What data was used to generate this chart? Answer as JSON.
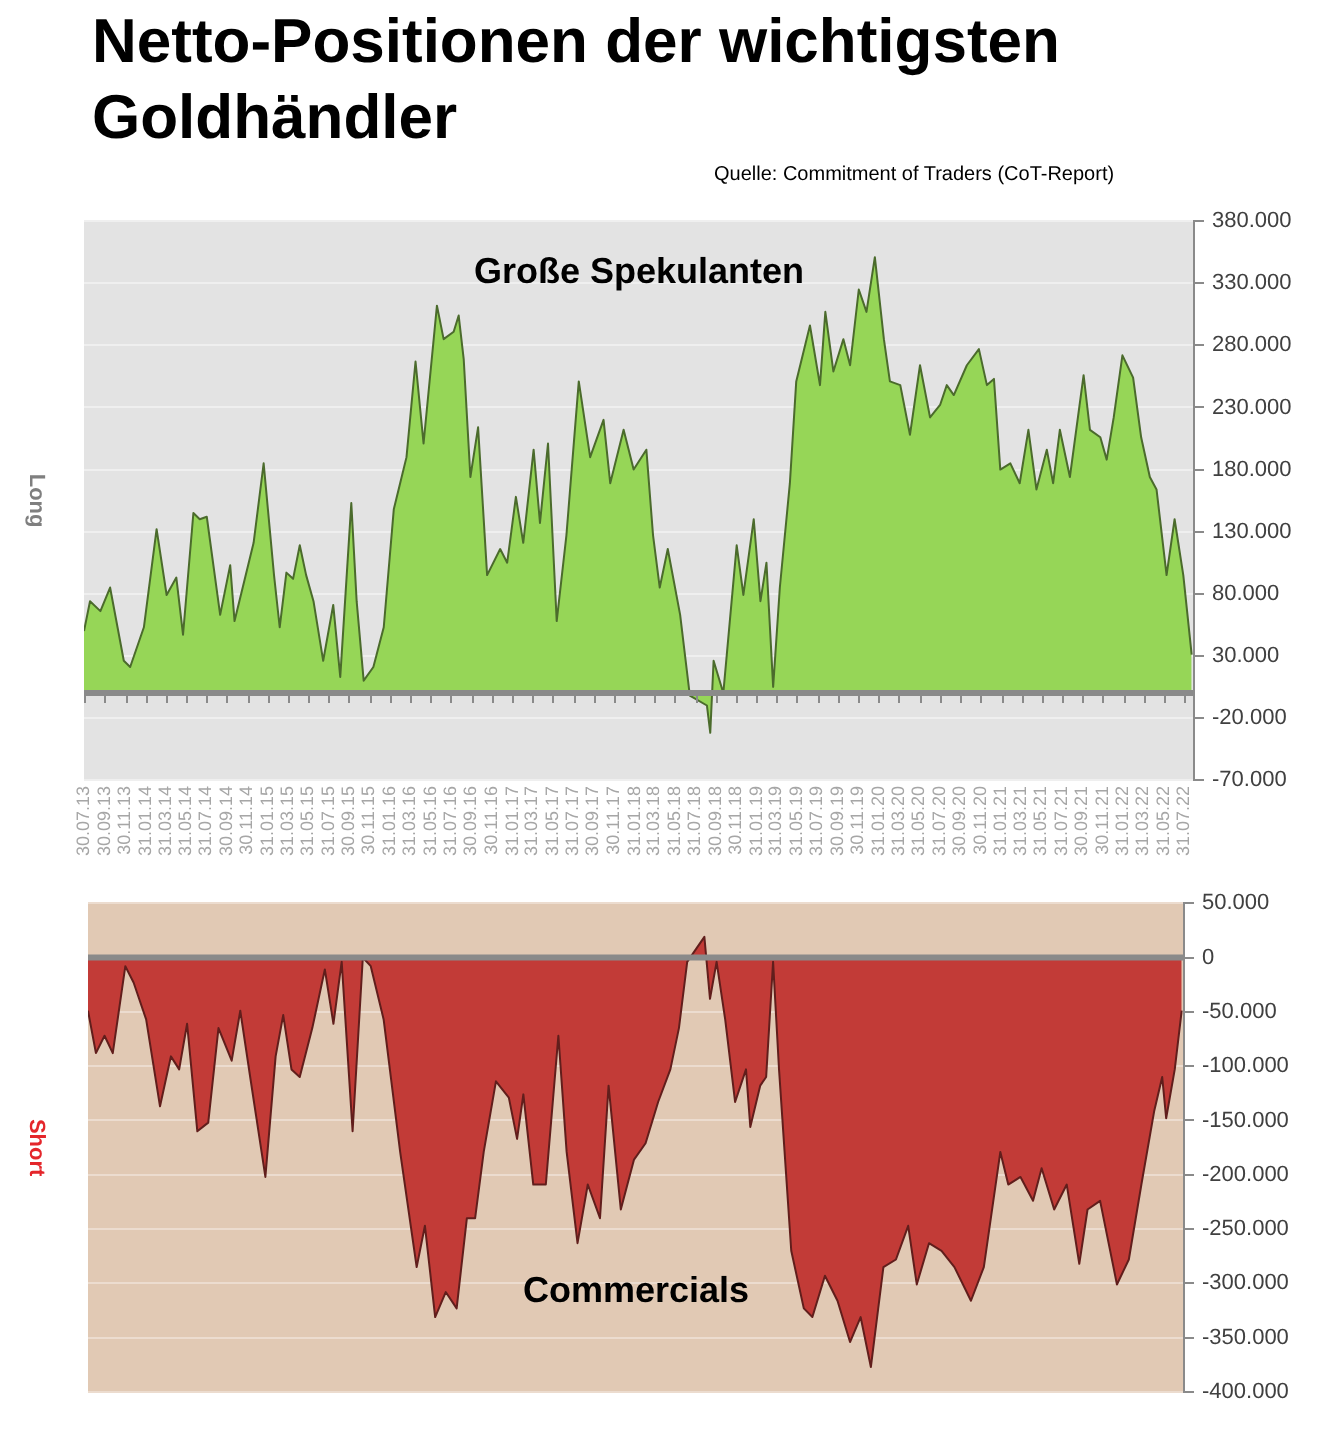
{
  "chart_data": [
    {
      "type": "area",
      "title": "Netto-Positionen der wichtigsten Goldhändler",
      "annotations": [
        "Quelle: Commitment of Traders (CoT-Report)"
      ],
      "ylabel": "Long",
      "grid": "y",
      "xlim": [
        "2013-07-30",
        "2022-08-30"
      ],
      "xticks": [
        {
          "value": "2013-07-30",
          "label": "30.07.13"
        },
        {
          "value": "2013-09-30",
          "label": "30.09.13"
        },
        {
          "value": "2013-11-30",
          "label": "30.11.13"
        },
        {
          "value": "2014-01-31",
          "label": "31.01.14"
        },
        {
          "value": "2014-03-31",
          "label": "31.03.14"
        },
        {
          "value": "2014-05-31",
          "label": "31.05.14"
        },
        {
          "value": "2014-07-31",
          "label": "31.07.14"
        },
        {
          "value": "2014-09-30",
          "label": "30.09.14"
        },
        {
          "value": "2014-11-30",
          "label": "30.11.14"
        },
        {
          "value": "2015-01-31",
          "label": "31.01.15"
        },
        {
          "value": "2015-03-31",
          "label": "31.03.15"
        },
        {
          "value": "2015-05-31",
          "label": "31.05.15"
        },
        {
          "value": "2015-07-31",
          "label": "31.07.15"
        },
        {
          "value": "2015-09-30",
          "label": "30.09.15"
        },
        {
          "value": "2015-11-30",
          "label": "30.11.15"
        },
        {
          "value": "2016-01-31",
          "label": "31.01.16"
        },
        {
          "value": "2016-03-31",
          "label": "31.03.16"
        },
        {
          "value": "2016-05-31",
          "label": "31.05.16"
        },
        {
          "value": "2016-07-31",
          "label": "31.07.16"
        },
        {
          "value": "2016-09-30",
          "label": "30.09.16"
        },
        {
          "value": "2016-11-30",
          "label": "30.11.16"
        },
        {
          "value": "2017-01-31",
          "label": "31.01.17"
        },
        {
          "value": "2017-03-31",
          "label": "31.03.17"
        },
        {
          "value": "2017-05-31",
          "label": "31.05.17"
        },
        {
          "value": "2017-07-31",
          "label": "31.07.17"
        },
        {
          "value": "2017-09-30",
          "label": "30.09.17"
        },
        {
          "value": "2017-11-30",
          "label": "30.11.17"
        },
        {
          "value": "2018-01-31",
          "label": "31.01.18"
        },
        {
          "value": "2018-03-31",
          "label": "31.03.18"
        },
        {
          "value": "2018-05-31",
          "label": "31.05.18"
        },
        {
          "value": "2018-07-31",
          "label": "31.07.18"
        },
        {
          "value": "2018-09-30",
          "label": "30.09.18"
        },
        {
          "value": "2018-11-30",
          "label": "30.11.18"
        },
        {
          "value": "2019-01-31",
          "label": "31.01.19"
        },
        {
          "value": "2019-03-31",
          "label": "31.03.19"
        },
        {
          "value": "2019-05-31",
          "label": "31.05.19"
        },
        {
          "value": "2019-07-31",
          "label": "31.07.19"
        },
        {
          "value": "2019-09-30",
          "label": "30.09.19"
        },
        {
          "value": "2019-11-30",
          "label": "30.11.19"
        },
        {
          "value": "2020-01-31",
          "label": "31.01.20"
        },
        {
          "value": "2020-03-31",
          "label": "31.03.20"
        },
        {
          "value": "2020-05-31",
          "label": "31.05.20"
        },
        {
          "value": "2020-07-31",
          "label": "31.07.20"
        },
        {
          "value": "2020-09-30",
          "label": "30.09.20"
        },
        {
          "value": "2020-11-30",
          "label": "30.11.20"
        },
        {
          "value": "2021-01-31",
          "label": "31.01.21"
        },
        {
          "value": "2021-03-31",
          "label": "31.03.21"
        },
        {
          "value": "2021-05-31",
          "label": "31.05.21"
        },
        {
          "value": "2021-07-31",
          "label": "31.07.21"
        },
        {
          "value": "2021-09-30",
          "label": "30.09.21"
        },
        {
          "value": "2021-11-30",
          "label": "30.11.21"
        },
        {
          "value": "2022-01-31",
          "label": "31.01.22"
        },
        {
          "value": "2022-03-31",
          "label": "31.03.22"
        },
        {
          "value": "2022-05-31",
          "label": "31.05.22"
        },
        {
          "value": "2022-07-31",
          "label": "31.07.22"
        }
      ],
      "ylim": [
        -70000,
        380000
      ],
      "yticks": [
        {
          "value": -70000,
          "label": "-70.000"
        },
        {
          "value": -20000,
          "label": "-20.000"
        },
        {
          "value": 30000,
          "label": "30.000"
        },
        {
          "value": 80000,
          "label": "80.000"
        },
        {
          "value": 130000,
          "label": "130.000"
        },
        {
          "value": 180000,
          "label": "180.000"
        },
        {
          "value": 230000,
          "label": "230.000"
        },
        {
          "value": 280000,
          "label": "280.000"
        },
        {
          "value": 330000,
          "label": "330.000"
        },
        {
          "value": 380000,
          "label": "380.000"
        }
      ],
      "x": [
        "2013-07-30",
        "2013-08-17",
        "2013-09-17",
        "2013-10-16",
        "2013-11-26",
        "2013-12-15",
        "2014-01-25",
        "2014-03-04",
        "2014-04-03",
        "2014-05-02",
        "2014-05-22",
        "2014-06-22",
        "2014-07-11",
        "2014-08-01",
        "2014-09-10",
        "2014-10-10",
        "2014-10-23",
        "2014-12-19",
        "2015-01-18",
        "2015-02-18",
        "2015-03-07",
        "2015-03-27",
        "2015-04-16",
        "2015-05-06",
        "2015-05-25",
        "2015-06-16",
        "2015-07-15",
        "2015-08-14",
        "2015-09-04",
        "2015-10-07",
        "2015-10-23",
        "2015-11-13",
        "2015-12-12",
        "2016-01-12",
        "2016-02-11",
        "2016-03-01",
        "2016-03-20",
        "2016-04-16",
        "2016-05-10",
        "2016-06-19",
        "2016-07-09",
        "2016-08-08",
        "2016-08-23",
        "2016-09-07",
        "2016-09-27",
        "2016-10-20",
        "2016-11-16",
        "2016-12-25",
        "2017-01-15",
        "2017-02-10",
        "2017-03-04",
        "2017-04-04",
        "2017-04-23",
        "2017-05-17",
        "2017-06-12",
        "2017-07-11",
        "2017-08-17",
        "2017-09-20",
        "2017-10-30",
        "2017-11-19",
        "2017-12-29",
        "2018-01-28",
        "2018-03-07",
        "2018-03-27",
        "2018-04-16",
        "2018-05-10",
        "2018-06-16",
        "2018-07-15",
        "2018-09-04",
        "2018-09-14",
        "2018-09-24",
        "2018-10-23",
        "2018-12-02",
        "2018-12-22",
        "2019-01-22",
        "2019-02-11",
        "2019-03-01",
        "2019-03-21",
        "2019-04-10",
        "2019-05-10",
        "2019-05-29",
        "2019-07-09",
        "2019-08-08",
        "2019-08-24",
        "2019-09-17",
        "2019-10-17",
        "2019-11-06",
        "2019-12-02",
        "2019-12-25",
        "2020-01-19",
        "2020-02-15",
        "2020-03-04",
        "2020-04-04",
        "2020-05-03",
        "2020-06-02",
        "2020-07-02",
        "2020-08-01",
        "2020-08-21",
        "2020-09-11",
        "2020-10-20",
        "2020-11-25",
        "2020-12-19",
        "2021-01-09",
        "2021-01-28",
        "2021-02-27",
        "2021-03-27",
        "2021-04-22",
        "2021-05-16",
        "2021-06-16",
        "2021-07-05",
        "2021-07-25",
        "2021-08-24",
        "2021-10-04",
        "2021-10-23",
        "2021-11-23",
        "2021-12-12",
        "2022-01-02",
        "2022-01-28",
        "2022-03-01",
        "2022-03-25",
        "2022-04-20",
        "2022-05-10",
        "2022-06-09",
        "2022-07-03",
        "2022-07-29",
        "2022-08-23"
      ],
      "series": [
        {
          "name": "Große Spekulanten",
          "color": "#96d657",
          "values": [
            50000,
            74000,
            66000,
            85000,
            26000,
            21000,
            53000,
            132000,
            79000,
            93000,
            47000,
            145000,
            140000,
            142000,
            63000,
            103000,
            58000,
            121000,
            185000,
            95000,
            53000,
            97000,
            92000,
            119000,
            95000,
            74000,
            26000,
            71000,
            13000,
            153000,
            74000,
            10000,
            21000,
            53000,
            148000,
            169000,
            190000,
            267000,
            201000,
            312000,
            285000,
            291000,
            304000,
            269000,
            174000,
            214000,
            95000,
            116000,
            105000,
            158000,
            121000,
            196000,
            137000,
            201000,
            58000,
            127000,
            251000,
            190000,
            220000,
            169000,
            212000,
            180000,
            196000,
            127000,
            85000,
            116000,
            63000,
            -2000,
            -10000,
            -32000,
            26000,
            0,
            119000,
            79000,
            140000,
            74000,
            105000,
            5000,
            85000,
            169000,
            251000,
            296000,
            248000,
            307000,
            259000,
            285000,
            264000,
            325000,
            307000,
            351000,
            285000,
            251000,
            248000,
            208000,
            264000,
            222000,
            232000,
            248000,
            240000,
            264000,
            277000,
            248000,
            253000,
            180000,
            185000,
            169000,
            212000,
            164000,
            196000,
            169000,
            212000,
            174000,
            256000,
            212000,
            206000,
            188000,
            222000,
            272000,
            254000,
            206000,
            174000,
            164000,
            95000,
            140000,
            95000,
            31000
          ]
        }
      ]
    },
    {
      "type": "area",
      "ylabel": "Short",
      "grid": "y",
      "tick_labels": "y",
      "xlim": [
        "2013-07-30",
        "2022-08-30"
      ],
      "ylim": [
        -400000,
        50000
      ],
      "yticks": [
        {
          "value": -400000,
          "label": "-400.000"
        },
        {
          "value": -350000,
          "label": "-350.000"
        },
        {
          "value": -300000,
          "label": "-300.000"
        },
        {
          "value": -250000,
          "label": "-250.000"
        },
        {
          "value": -200000,
          "label": "-200.000"
        },
        {
          "value": -150000,
          "label": "-150.000"
        },
        {
          "value": -100000,
          "label": "-100.000"
        },
        {
          "value": -50000,
          "label": "-50.000"
        },
        0,
        {
          "value": 50000,
          "label": "50.000"
        }
      ],
      "x": [
        "2013-07-30",
        "2013-08-23",
        "2013-09-18",
        "2013-10-13",
        "2013-11-20",
        "2013-12-15",
        "2014-01-22",
        "2014-03-05",
        "2014-04-07",
        "2014-05-02",
        "2014-05-26",
        "2014-06-26",
        "2014-07-29",
        "2014-08-29",
        "2014-10-08",
        "2014-11-03",
        "2014-12-03",
        "2015-01-18",
        "2015-02-18",
        "2015-03-13",
        "2015-04-07",
        "2015-05-02",
        "2015-06-09",
        "2015-07-17",
        "2015-08-12",
        "2015-09-06",
        "2015-10-09",
        "2015-11-09",
        "2015-12-03",
        "2016-01-11",
        "2016-03-01",
        "2016-04-20",
        "2016-05-15",
        "2016-06-15",
        "2016-07-17",
        "2016-08-19",
        "2016-09-19",
        "2016-10-14",
        "2016-11-09",
        "2016-12-16",
        "2017-01-24",
        "2017-02-18",
        "2017-03-09",
        "2017-04-08",
        "2017-05-16",
        "2017-06-23",
        "2017-07-18",
        "2017-08-20",
        "2017-09-20",
        "2017-10-27",
        "2017-11-22",
        "2017-12-29",
        "2018-02-07",
        "2018-03-14",
        "2018-04-21",
        "2018-05-28",
        "2018-06-23",
        "2018-07-18",
        "2018-09-08",
        "2018-09-25",
        "2018-10-15",
        "2018-11-10",
        "2018-12-10",
        "2019-01-12",
        "2019-01-25",
        "2019-02-24",
        "2019-03-14",
        "2019-04-04",
        "2019-04-22",
        "2019-05-29",
        "2019-07-06",
        "2019-08-01",
        "2019-09-08",
        "2019-10-16",
        "2019-11-23",
        "2019-12-25",
        "2020-01-25",
        "2020-03-03",
        "2020-04-10",
        "2020-05-17",
        "2020-06-12",
        "2020-07-19",
        "2020-08-26",
        "2020-10-04",
        "2020-11-23",
        "2021-01-01",
        "2021-02-20",
        "2021-03-16",
        "2021-04-22",
        "2021-05-30",
        "2021-06-25",
        "2021-08-02",
        "2021-09-09",
        "2021-10-17",
        "2021-11-11",
        "2021-12-19",
        "2022-02-08",
        "2022-03-16",
        "2022-04-23",
        "2022-06-01",
        "2022-06-25",
        "2022-07-07",
        "2022-08-02",
        "2022-08-23"
      ],
      "series": [
        {
          "name": "Commercials",
          "color": "#c23b37",
          "values": [
            -49000,
            -88000,
            -72000,
            -88000,
            -8000,
            -23000,
            -57000,
            -137000,
            -91000,
            -103000,
            -61000,
            -160000,
            -152000,
            -65000,
            -95000,
            -49000,
            -110000,
            -202000,
            -91000,
            -53000,
            -103000,
            -110000,
            -65000,
            -11000,
            -61000,
            -4000,
            -160000,
            0,
            -8000,
            -57000,
            -179000,
            -285000,
            -247000,
            -331000,
            -308000,
            -323000,
            -240000,
            -240000,
            -179000,
            -114000,
            -129000,
            -167000,
            -126000,
            -209000,
            -209000,
            -72000,
            -179000,
            -263000,
            -209000,
            -240000,
            -118000,
            -232000,
            -186000,
            -171000,
            -133000,
            -103000,
            -65000,
            -4000,
            19000,
            -38000,
            -4000,
            -57000,
            -133000,
            -103000,
            -156000,
            -118000,
            -110000,
            -4000,
            -103000,
            -270000,
            -323000,
            -331000,
            -293000,
            -316000,
            -354000,
            -331000,
            -377000,
            -285000,
            -278000,
            -247000,
            -301000,
            -263000,
            -270000,
            -285000,
            -316000,
            -285000,
            -179000,
            -209000,
            -202000,
            -224000,
            -194000,
            -232000,
            -209000,
            -282000,
            -232000,
            -224000,
            -301000,
            -278000,
            -209000,
            -141000,
            -110000,
            -148000,
            -103000,
            -49000
          ]
        }
      ]
    }
  ]
}
